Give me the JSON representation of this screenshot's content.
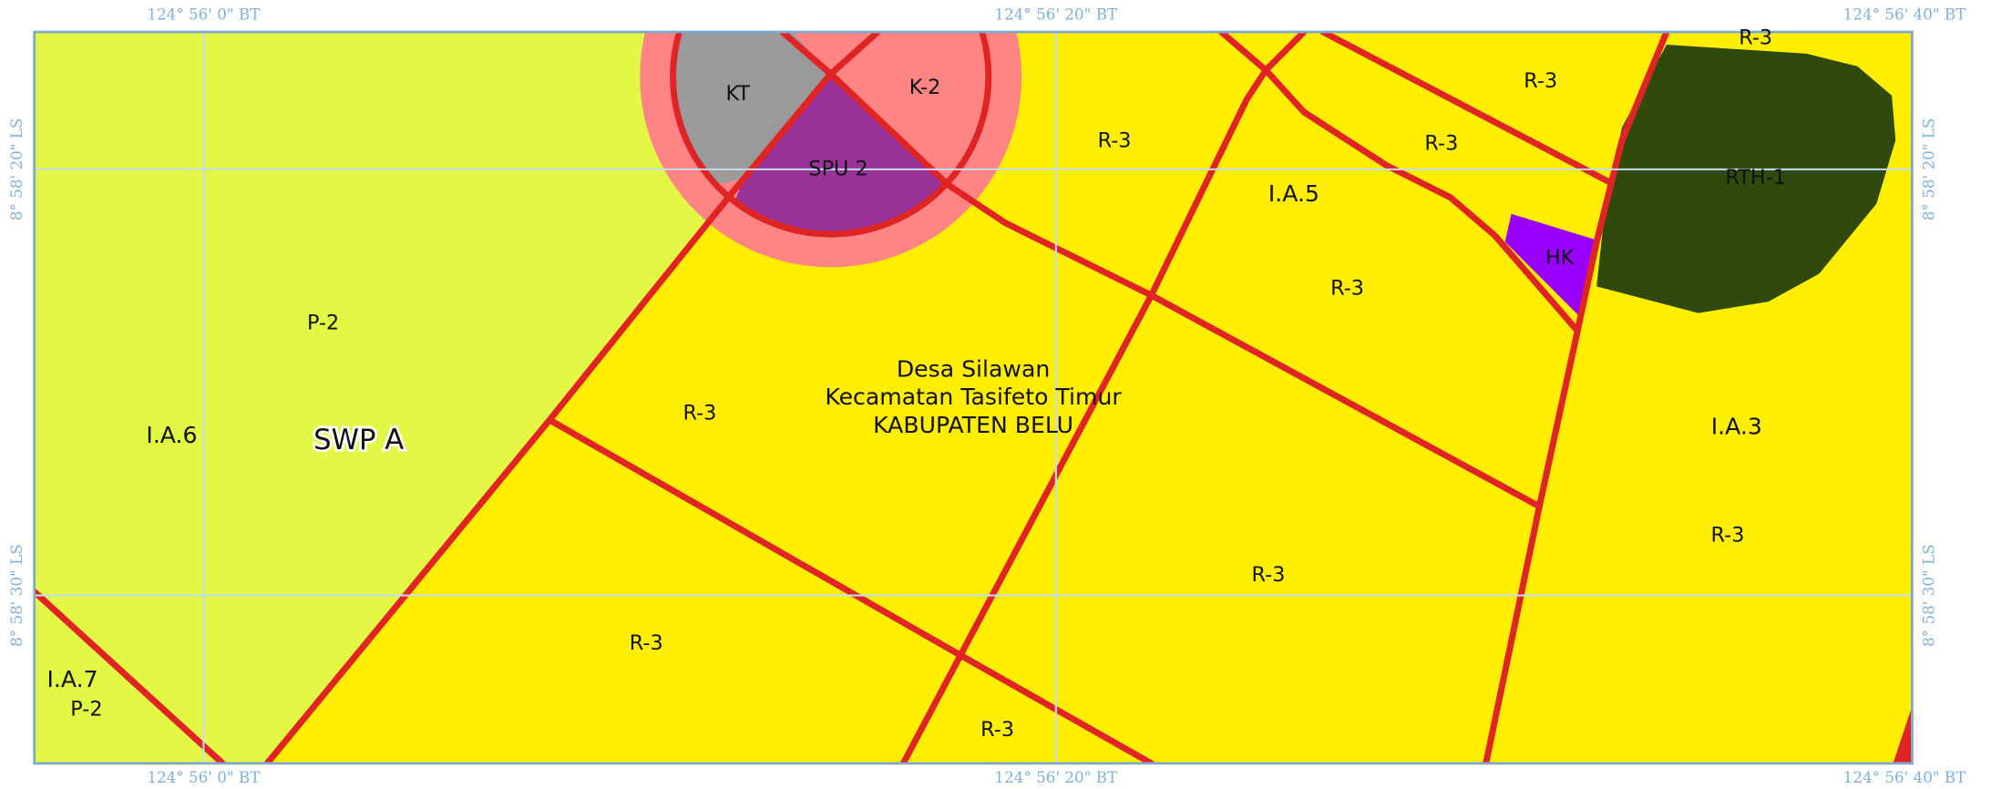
{
  "coordinates": {
    "top": [
      "124° 56' 0\" BT",
      "124° 56' 20\" BT",
      "124° 56' 40\" BT"
    ],
    "bottom": [
      "124° 56' 0\" BT",
      "124° 56' 20\" BT",
      "124° 56' 40\" BT"
    ],
    "left": [
      "8° 58' 20\" LS",
      "8° 58' 30\" LS"
    ],
    "right": [
      "8° 58' 20\" LS",
      "8° 58' 30\" LS"
    ]
  },
  "labels": {
    "kt": "KT",
    "k2": "K-2",
    "spu2": "SPU 2",
    "rth1": "RTH-1",
    "hk": "HK",
    "ia5": "I.A.5",
    "ia6": "I.A.6",
    "ia3": "I.A.3",
    "ia7": "I.A.7",
    "p2a": "P-2",
    "p2b": "P-2",
    "swp": "SWP A",
    "desa": "Desa Silawan",
    "kec": "Kecamatan Tasifeto Timur",
    "kab": "KABUPATEN BELU",
    "r3": [
      "R-3",
      "R-3",
      "R-3",
      "R-3",
      "R-3",
      "R-3",
      "R-3",
      "R-3",
      "R-3",
      "R-3"
    ]
  }
}
